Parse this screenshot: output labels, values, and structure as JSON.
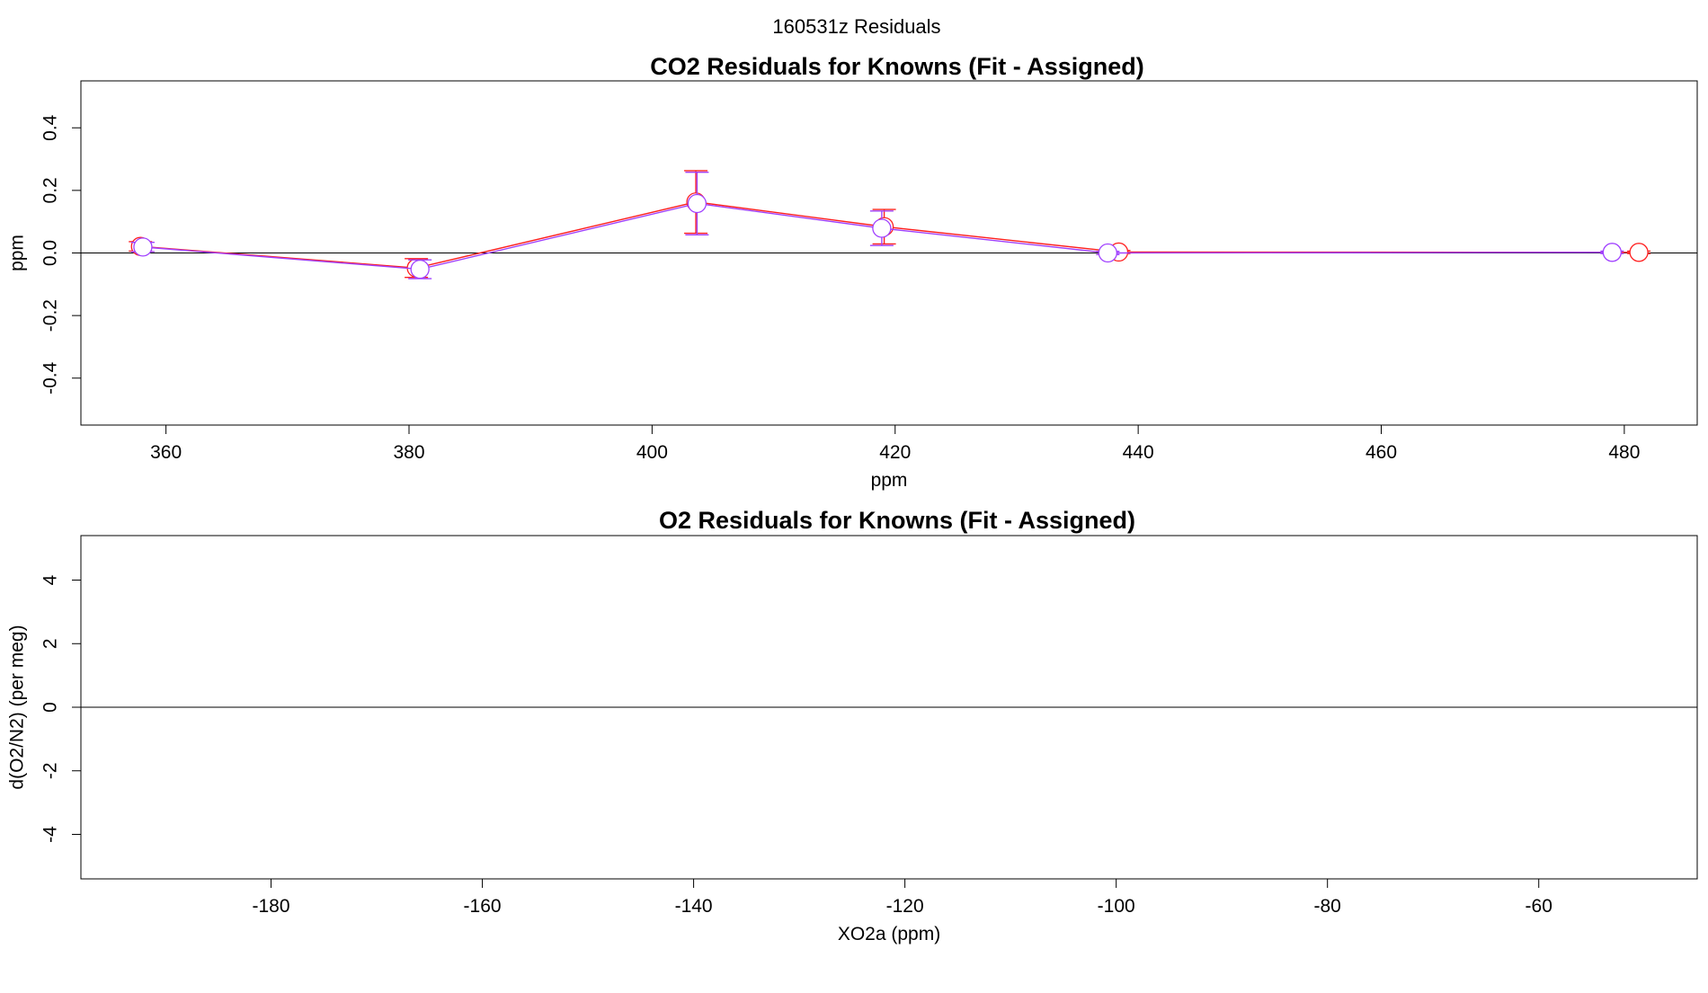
{
  "page_title": "160531z  Residuals",
  "chart_data": [
    {
      "type": "line",
      "title": "CO2 Residuals for Knowns (Fit - Assigned)",
      "xlabel": "ppm",
      "ylabel": "ppm",
      "xlim": [
        353,
        486
      ],
      "ylim": [
        -0.55,
        0.55
      ],
      "xticks": [
        360,
        380,
        400,
        420,
        440,
        460,
        480
      ],
      "yticks": [
        -0.4,
        -0.2,
        0.0,
        0.2,
        0.4
      ],
      "xtick_labels": [
        "360",
        "380",
        "400",
        "420",
        "440",
        "460",
        "480"
      ],
      "ytick_labels": [
        "-0.4",
        "-0.2",
        "0.0",
        "0.2",
        "0.4"
      ],
      "reference_line": 0,
      "grid": false,
      "series": [
        {
          "color": "#ff2020",
          "x": [
            357.9,
            380.6,
            403.6,
            419.1,
            438.4,
            481.2
          ],
          "y": [
            0.021,
            -0.048,
            0.163,
            0.084,
            0.003,
            0.002
          ],
          "err": [
            0.015,
            0.03,
            0.1,
            0.055,
            0.005,
            0.004
          ]
        },
        {
          "color": "#a040ff",
          "x": [
            358.1,
            380.9,
            403.7,
            418.9,
            437.5,
            479.0
          ],
          "y": [
            0.019,
            -0.052,
            0.158,
            0.079,
            0.0,
            0.002
          ],
          "err": [
            0.015,
            0.03,
            0.1,
            0.055,
            0.005,
            0.004
          ]
        }
      ]
    },
    {
      "type": "line",
      "title": "O2 Residuals for Knowns (Fit - Assigned)",
      "xlabel": "XO2a (ppm)",
      "ylabel": "d(O2/N2) (per meg)",
      "xlim": [
        -198,
        -45
      ],
      "ylim": [
        -5.4,
        5.4
      ],
      "xticks": [
        -180,
        -160,
        -140,
        -120,
        -100,
        -80,
        -60
      ],
      "yticks": [
        -4,
        -2,
        0,
        2,
        4
      ],
      "xtick_labels": [
        "-180",
        "-160",
        "-140",
        "-120",
        "-100",
        "-80",
        "-60"
      ],
      "ytick_labels": [
        "-4",
        "-2",
        "0",
        "2",
        "4"
      ],
      "reference_line": 0,
      "grid": false,
      "series": []
    }
  ]
}
